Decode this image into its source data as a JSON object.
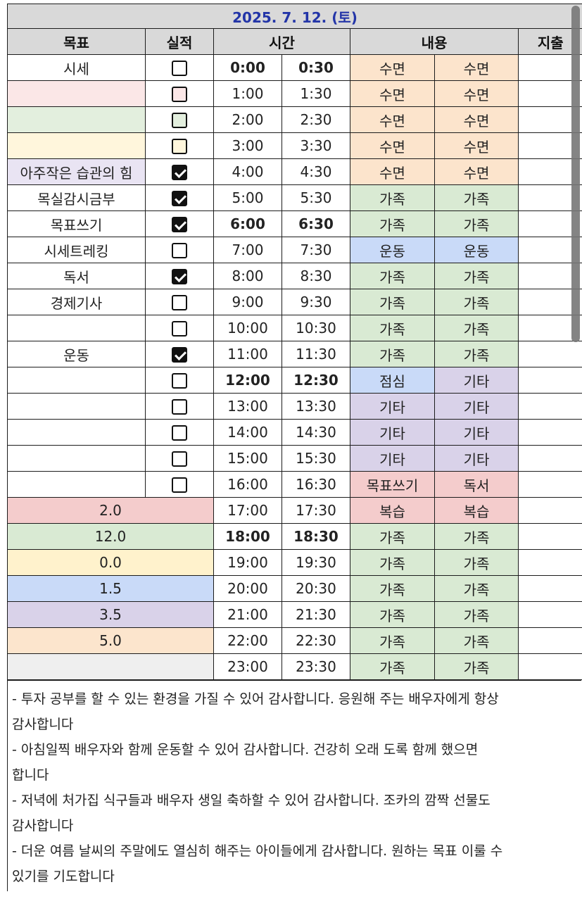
{
  "date": "2025. 7. 12. (토)",
  "headers": {
    "goal": "목표",
    "result": "실적",
    "time": "시간",
    "content": "내용",
    "expense": "지출"
  },
  "rows": [
    {
      "goal": "시세",
      "goal_color": "#ffffff",
      "checked": false,
      "cb_bg": "#ffffff",
      "t1": "0:00",
      "t2": "0:30",
      "bold": true,
      "c1": "수면",
      "c1c": "#fce4cc",
      "c2": "수면",
      "c2c": "#fce4cc"
    },
    {
      "goal": "",
      "goal_color": "#fbe7e7",
      "checked": false,
      "cb_bg": "#fbe7e7",
      "t1": "1:00",
      "t2": "1:30",
      "bold": false,
      "c1": "수면",
      "c1c": "#fce4cc",
      "c2": "수면",
      "c2c": "#fce4cc"
    },
    {
      "goal": "",
      "goal_color": "#e3efde",
      "checked": false,
      "cb_bg": "#e3efde",
      "t1": "2:00",
      "t2": "2:30",
      "bold": false,
      "c1": "수면",
      "c1c": "#fce4cc",
      "c2": "수면",
      "c2c": "#fce4cc"
    },
    {
      "goal": "",
      "goal_color": "#fff6dc",
      "checked": false,
      "cb_bg": "#fff6dc",
      "t1": "3:00",
      "t2": "3:30",
      "bold": false,
      "c1": "수면",
      "c1c": "#fce4cc",
      "c2": "수면",
      "c2c": "#fce4cc"
    },
    {
      "goal": "아주작은 습관의 힘",
      "goal_color": "#e9e4f3",
      "checked": true,
      "cb_bg": "#e9e4f3",
      "t1": "4:00",
      "t2": "4:30",
      "bold": false,
      "c1": "수면",
      "c1c": "#fce4cc",
      "c2": "수면",
      "c2c": "#fce4cc"
    },
    {
      "goal": "목실감시금부",
      "goal_color": "#ffffff",
      "checked": true,
      "cb_bg": "#ffffff",
      "t1": "5:00",
      "t2": "5:30",
      "bold": false,
      "c1": "가족",
      "c1c": "#d9ead3",
      "c2": "가족",
      "c2c": "#d9ead3"
    },
    {
      "goal": "목표쓰기",
      "goal_color": "#ffffff",
      "checked": true,
      "cb_bg": "#ffffff",
      "t1": "6:00",
      "t2": "6:30",
      "bold": true,
      "c1": "가족",
      "c1c": "#d9ead3",
      "c2": "가족",
      "c2c": "#d9ead3"
    },
    {
      "goal": "시세트레킹",
      "goal_color": "#ffffff",
      "checked": false,
      "cb_bg": "#ffffff",
      "t1": "7:00",
      "t2": "7:30",
      "bold": false,
      "c1": "운동",
      "c1c": "#c9daf8",
      "c2": "운동",
      "c2c": "#c9daf8"
    },
    {
      "goal": "독서",
      "goal_color": "#ffffff",
      "checked": true,
      "cb_bg": "#ffffff",
      "t1": "8:00",
      "t2": "8:30",
      "bold": false,
      "c1": "가족",
      "c1c": "#d9ead3",
      "c2": "가족",
      "c2c": "#d9ead3"
    },
    {
      "goal": "경제기사",
      "goal_color": "#ffffff",
      "checked": false,
      "cb_bg": "#ffffff",
      "t1": "9:00",
      "t2": "9:30",
      "bold": false,
      "c1": "가족",
      "c1c": "#d9ead3",
      "c2": "가족",
      "c2c": "#d9ead3"
    },
    {
      "goal": "",
      "goal_color": "#ffffff",
      "checked": false,
      "cb_bg": "#ffffff",
      "t1": "10:00",
      "t2": "10:30",
      "bold": false,
      "c1": "가족",
      "c1c": "#d9ead3",
      "c2": "가족",
      "c2c": "#d9ead3"
    },
    {
      "goal": "운동",
      "goal_color": "#ffffff",
      "checked": true,
      "cb_bg": "#ffffff",
      "t1": "11:00",
      "t2": "11:30",
      "bold": false,
      "c1": "가족",
      "c1c": "#d9ead3",
      "c2": "가족",
      "c2c": "#d9ead3"
    },
    {
      "goal": "",
      "goal_color": "#ffffff",
      "checked": false,
      "cb_bg": "#ffffff",
      "t1": "12:00",
      "t2": "12:30",
      "bold": true,
      "c1": "점심",
      "c1c": "#c9daf8",
      "c2": "기타",
      "c2c": "#d9d2e9"
    },
    {
      "goal": "",
      "goal_color": "#ffffff",
      "checked": false,
      "cb_bg": "#ffffff",
      "t1": "13:00",
      "t2": "13:30",
      "bold": false,
      "c1": "기타",
      "c1c": "#d9d2e9",
      "c2": "기타",
      "c2c": "#d9d2e9"
    },
    {
      "goal": "",
      "goal_color": "#ffffff",
      "checked": false,
      "cb_bg": "#ffffff",
      "t1": "14:00",
      "t2": "14:30",
      "bold": false,
      "c1": "기타",
      "c1c": "#d9d2e9",
      "c2": "기타",
      "c2c": "#d9d2e9"
    },
    {
      "goal": "",
      "goal_color": "#ffffff",
      "checked": false,
      "cb_bg": "#ffffff",
      "t1": "15:00",
      "t2": "15:30",
      "bold": false,
      "c1": "기타",
      "c1c": "#d9d2e9",
      "c2": "기타",
      "c2c": "#d9d2e9"
    },
    {
      "goal": "",
      "goal_color": "#ffffff",
      "checked": false,
      "cb_bg": "#ffffff",
      "t1": "16:00",
      "t2": "16:30",
      "bold": false,
      "c1": "목표쓰기",
      "c1c": "#f4cccc",
      "c2": "독서",
      "c2c": "#f4cccc"
    },
    {
      "summary": "2.0",
      "summary_color": "#f4cccc",
      "t1": "17:00",
      "t2": "17:30",
      "bold": false,
      "c1": "복습",
      "c1c": "#f4cccc",
      "c2": "복습",
      "c2c": "#f4cccc"
    },
    {
      "summary": "12.0",
      "summary_color": "#d9ead3",
      "t1": "18:00",
      "t2": "18:30",
      "bold": true,
      "c1": "가족",
      "c1c": "#d9ead3",
      "c2": "가족",
      "c2c": "#d9ead3"
    },
    {
      "summary": "0.0",
      "summary_color": "#fff2cc",
      "t1": "19:00",
      "t2": "19:30",
      "bold": false,
      "c1": "가족",
      "c1c": "#d9ead3",
      "c2": "가족",
      "c2c": "#d9ead3"
    },
    {
      "summary": "1.5",
      "summary_color": "#c9daf8",
      "t1": "20:00",
      "t2": "20:30",
      "bold": false,
      "c1": "가족",
      "c1c": "#d9ead3",
      "c2": "가족",
      "c2c": "#d9ead3"
    },
    {
      "summary": "3.5",
      "summary_color": "#d9d2e9",
      "t1": "21:00",
      "t2": "21:30",
      "bold": false,
      "c1": "가족",
      "c1c": "#d9ead3",
      "c2": "가족",
      "c2c": "#d9ead3"
    },
    {
      "summary": "5.0",
      "summary_color": "#fce5cd",
      "t1": "22:00",
      "t2": "22:30",
      "bold": false,
      "c1": "가족",
      "c1c": "#d9ead3",
      "c2": "가족",
      "c2c": "#d9ead3"
    },
    {
      "summary": "",
      "summary_color": "#efefef",
      "t1": "23:00",
      "t2": "23:30",
      "bold": false,
      "c1": "가족",
      "c1c": "#d9ead3",
      "c2": "가족",
      "c2c": "#d9ead3"
    }
  ],
  "notes": [
    "- 투자 공부를 할 수 있는 환경을 가질 수 있어 감사합니다. 응원해 주는 배우자에게 항상",
    "감사합니다",
    "- 아침일찍 배우자와 함께 운동할 수 있어 감사합니다. 건강히 오래 도록 함께 했으면",
    "합니다",
    "- 저녁에 처가집 식구들과 배우자 생일 축하할 수 있어 감사합니다. 조카의 깜짝 선물도",
    "감사합니다",
    "- 더운 여름 날씨의 주말에도 열심히 해주는 아이들에게 감사합니다. 원하는 목표 이룰 수",
    "있기를 기도합니다"
  ]
}
